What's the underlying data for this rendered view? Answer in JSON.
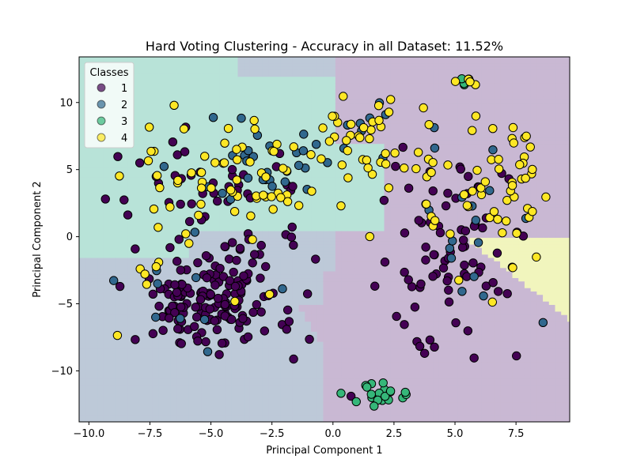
{
  "chart_data": {
    "type": "scatter",
    "title": "Hard Voting Clustering - Accuracy in all Dataset: 11.52%",
    "xlabel": "Principal Component 1",
    "ylabel": "Principal Component 2",
    "xlim": [
      -10.4,
      9.7
    ],
    "ylim": [
      -13.8,
      13.4
    ],
    "x_ticks": [
      -10,
      -7.5,
      -5,
      -2.5,
      0,
      2.5,
      5,
      7.5
    ],
    "x_tick_labels": [
      "−10.0",
      "−7.5",
      "−5.0",
      "−2.5",
      "0.0",
      "2.5",
      "5.0",
      "7.5"
    ],
    "y_ticks": [
      -10,
      -5,
      0,
      5,
      10
    ],
    "y_tick_labels": [
      "−10",
      "−5",
      "0",
      "5",
      "10"
    ],
    "grid": false,
    "legend": {
      "title": "Classes",
      "placement": "top-left",
      "entries": [
        {
          "label": "1",
          "color": "#440154"
        },
        {
          "label": "2",
          "color": "#31688e"
        },
        {
          "label": "3",
          "color": "#35b779"
        },
        {
          "label": "4",
          "color": "#fde725"
        }
      ]
    },
    "regions": [
      {
        "class": "1",
        "color": "#c9b8d3"
      },
      {
        "class": "2",
        "color": "#bdc9d8"
      },
      {
        "class": "3",
        "color": "#b8e3d8"
      },
      {
        "class": "4",
        "color": "#f1f5bd"
      }
    ],
    "clusters": [
      {
        "class": "1",
        "cx": -4.9,
        "cy": -4.5,
        "sx": 1.7,
        "sy": 2.1,
        "n": 170
      },
      {
        "class": "1",
        "cx": -5.0,
        "cy": 4.0,
        "sx": 1.9,
        "sy": 1.7,
        "n": 40
      },
      {
        "class": "1",
        "cx": 4.8,
        "cy": -2.8,
        "sx": 1.5,
        "sy": 2.6,
        "n": 55
      },
      {
        "class": "1",
        "cx": 5.5,
        "cy": 2.5,
        "sx": 1.4,
        "sy": 2.2,
        "n": 25
      },
      {
        "class": "2",
        "cx": -3.2,
        "cy": 5.5,
        "sx": 1.9,
        "sy": 1.7,
        "n": 28
      },
      {
        "class": "2",
        "cx": -6.8,
        "cy": -3.5,
        "sx": 1.5,
        "sy": 2.2,
        "n": 10
      },
      {
        "class": "2",
        "cx": 1.5,
        "cy": 7.0,
        "sx": 1.0,
        "sy": 1.8,
        "n": 8
      },
      {
        "class": "2",
        "cx": 5.5,
        "cy": 0.5,
        "sx": 1.8,
        "sy": 3.8,
        "n": 18
      },
      {
        "class": "3",
        "cx": 2.0,
        "cy": -11.9,
        "sx": 0.7,
        "sy": 0.5,
        "n": 20
      },
      {
        "class": "3",
        "cx": 5.4,
        "cy": 11.7,
        "sx": 0.2,
        "sy": 0.2,
        "n": 5
      },
      {
        "class": "4",
        "cx": -3.5,
        "cy": 4.5,
        "sx": 2.3,
        "sy": 2.3,
        "n": 60
      },
      {
        "class": "4",
        "cx": 1.5,
        "cy": 7.0,
        "sx": 1.2,
        "sy": 2.2,
        "n": 35
      },
      {
        "class": "4",
        "cx": 6.2,
        "cy": 3.5,
        "sx": 1.6,
        "sy": 3.5,
        "n": 60
      },
      {
        "class": "4",
        "cx": -6.5,
        "cy": 0.5,
        "sx": 1.8,
        "sy": 3.0,
        "n": 15
      },
      {
        "class": "4",
        "cx": 5.5,
        "cy": 11.6,
        "sx": 0.3,
        "sy": 0.2,
        "n": 5
      }
    ]
  }
}
